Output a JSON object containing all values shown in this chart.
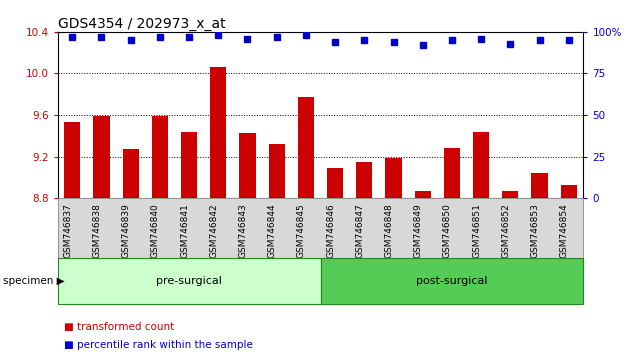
{
  "title": "GDS4354 / 202973_x_at",
  "categories": [
    "GSM746837",
    "GSM746838",
    "GSM746839",
    "GSM746840",
    "GSM746841",
    "GSM746842",
    "GSM746843",
    "GSM746844",
    "GSM746845",
    "GSM746846",
    "GSM746847",
    "GSM746848",
    "GSM746849",
    "GSM746850",
    "GSM746851",
    "GSM746852",
    "GSM746853",
    "GSM746854"
  ],
  "bar_values": [
    9.53,
    9.59,
    9.27,
    9.59,
    9.44,
    10.06,
    9.43,
    9.32,
    9.77,
    9.09,
    9.15,
    9.19,
    8.87,
    9.28,
    9.44,
    8.87,
    9.04,
    8.93
  ],
  "percentile_values": [
    97,
    97,
    95,
    97,
    97,
    98,
    96,
    97,
    98,
    94,
    95,
    94,
    92,
    95,
    96,
    93,
    95,
    95
  ],
  "bar_color": "#cc0000",
  "percentile_color": "#0000cc",
  "ylim_left": [
    8.8,
    10.4
  ],
  "ylim_right": [
    0,
    100
  ],
  "yticks_left": [
    8.8,
    9.2,
    9.6,
    10.0,
    10.4
  ],
  "yticks_right": [
    0,
    25,
    50,
    75,
    100
  ],
  "grid_values": [
    9.2,
    9.6,
    10.0
  ],
  "groups": [
    {
      "label": "pre-surgical",
      "start": 0,
      "end": 9,
      "color": "#ccffcc"
    },
    {
      "label": "post-surgical",
      "start": 9,
      "end": 18,
      "color": "#55cc55"
    }
  ],
  "specimen_label": "specimen",
  "legend_items": [
    {
      "label": "transformed count",
      "color": "#cc0000"
    },
    {
      "label": "percentile rank within the sample",
      "color": "#0000cc"
    }
  ],
  "title_fontsize": 10,
  "tick_fontsize": 7.5,
  "bar_width": 0.55,
  "background_color": "#ffffff",
  "axis_label_color_left": "#cc0000",
  "axis_label_color_right": "#0000cc",
  "plot_bg": "#ffffff",
  "xtick_area_color": "#d8d8d8"
}
